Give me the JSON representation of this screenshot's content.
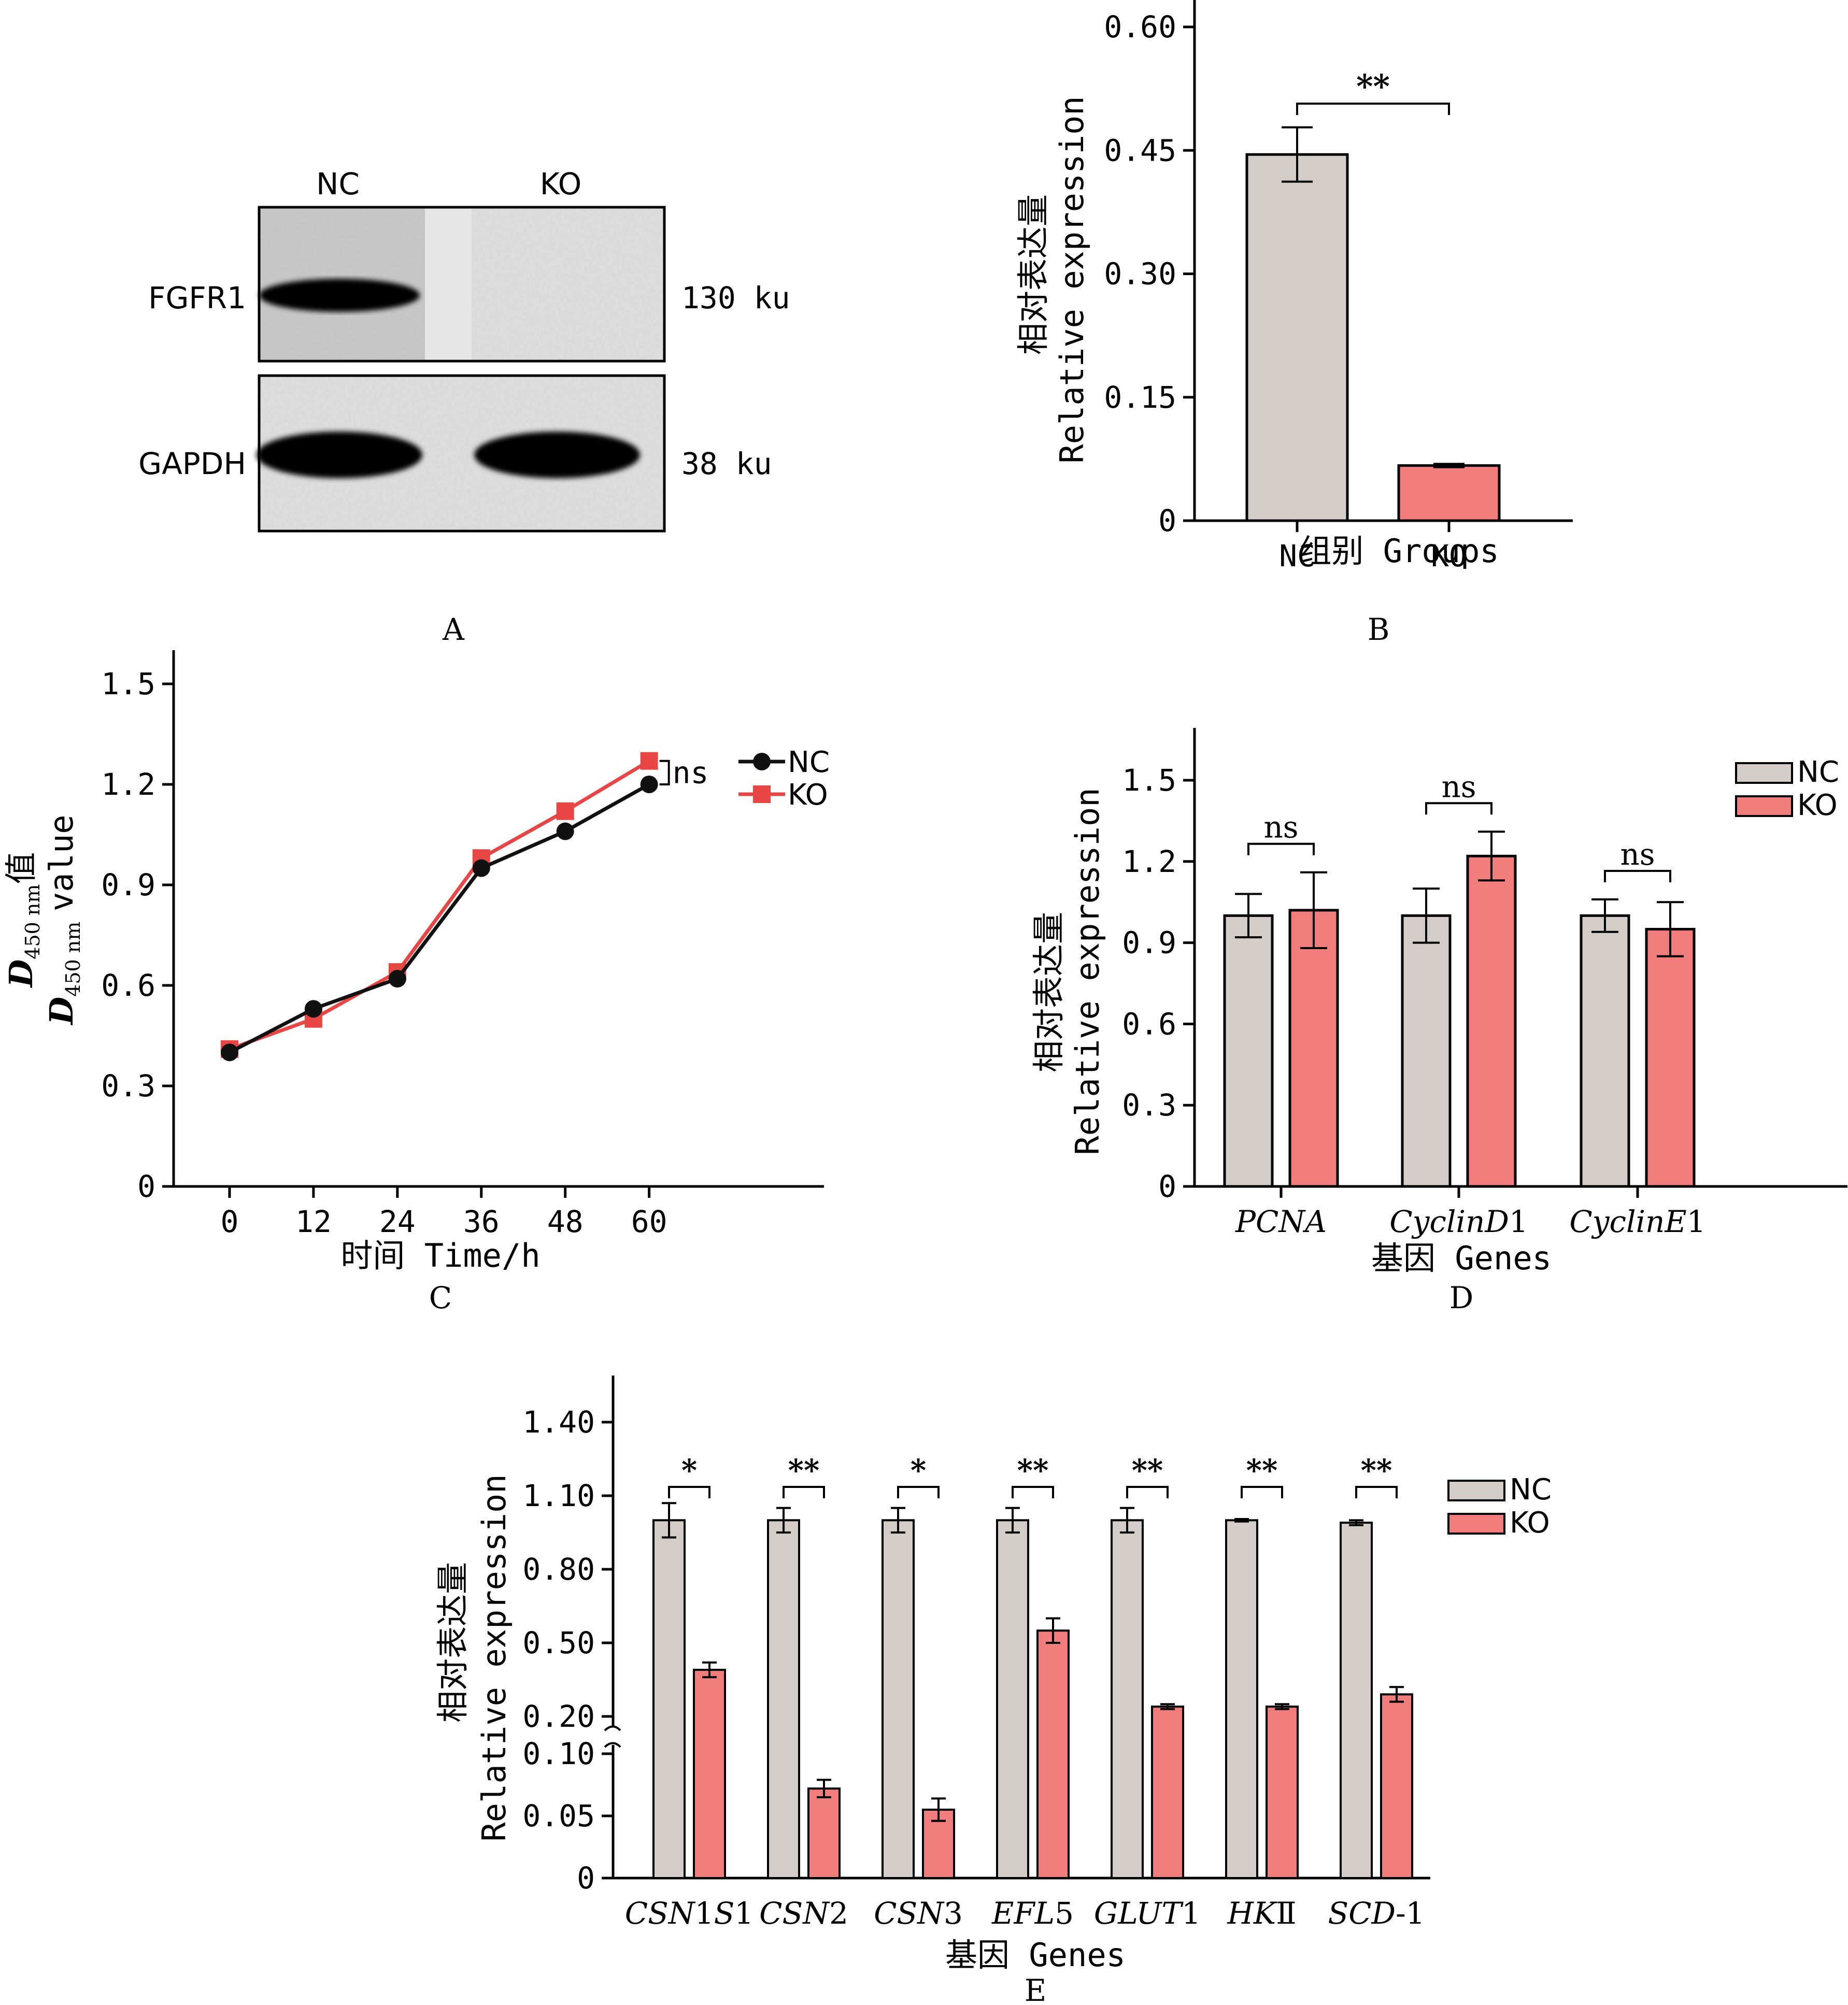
{
  "colors": {
    "nc_bar": "#d4ccc9",
    "ko_bar": "#f07c7c",
    "nc_line": "#111111",
    "ko_line": "#e84545",
    "blot_bg": "#d9d9d9"
  },
  "panels": {
    "A": {
      "label": "A",
      "lane_labels": [
        "NC",
        "KO"
      ],
      "bands": [
        {
          "name": "FGFR1",
          "size": "130 ku"
        },
        {
          "name": "GAPDH",
          "size": "38 ku"
        }
      ]
    },
    "B": {
      "label": "B"
    },
    "C": {
      "label": "C"
    },
    "D": {
      "label": "D"
    },
    "E": {
      "label": "E"
    }
  },
  "chart_data": [
    {
      "id": "B",
      "type": "bar",
      "ylabel_cn": "相对表达量",
      "ylabel_en": "Relative expression",
      "xlabel_cn": "组别",
      "xlabel_en": "Groups",
      "categories": [
        "NC",
        "KO"
      ],
      "values": [
        0.445,
        0.067
      ],
      "errors": [
        0.033,
        0.002
      ],
      "ylim": [
        0,
        0.6
      ],
      "yticks": [
        0,
        0.15,
        0.3,
        0.45,
        0.6
      ],
      "ytick_labels": [
        "0",
        "0.15",
        "0.30",
        "0.45",
        "0.60"
      ],
      "significance": [
        {
          "from": 0,
          "to": 1,
          "label": "**"
        }
      ]
    },
    {
      "id": "C",
      "type": "line",
      "ylabel_italic": "D",
      "ylabel_sub": "450 nm",
      "ylabel_cn": "值",
      "ylabel_en": "value",
      "xlabel_cn": "时间",
      "xlabel_en": "Time/h",
      "x": [
        0,
        12,
        24,
        36,
        48,
        60
      ],
      "xtick_labels": [
        "0",
        "12",
        "24",
        "36",
        "48",
        "60"
      ],
      "xlim": [
        -8,
        85
      ],
      "ylim": [
        0,
        1.5
      ],
      "yticks": [
        0,
        0.3,
        0.6,
        0.9,
        1.2,
        1.5
      ],
      "ytick_labels": [
        "0",
        "0.3",
        "0.6",
        "0.9",
        "1.2",
        "1.5"
      ],
      "series": [
        {
          "name": "NC",
          "values": [
            0.4,
            0.53,
            0.62,
            0.95,
            1.06,
            1.2
          ],
          "marker": "circle"
        },
        {
          "name": "KO",
          "values": [
            0.41,
            0.5,
            0.64,
            0.98,
            1.12,
            1.27
          ],
          "marker": "square"
        }
      ],
      "significance": [
        {
          "label": "ns"
        }
      ],
      "legend": "right"
    },
    {
      "id": "D",
      "type": "bar",
      "ylabel_cn": "相对表达量",
      "ylabel_en": "Relative expression",
      "xlabel_cn": "基因",
      "xlabel_en": "Genes",
      "categories": [
        {
          "parts": [
            {
              "t": "PCNA",
              "i": true
            }
          ]
        },
        {
          "parts": [
            {
              "t": "CyclinD",
              "i": true
            },
            {
              "t": "1",
              "i": false
            }
          ]
        },
        {
          "parts": [
            {
              "t": "CyclinE",
              "i": true
            },
            {
              "t": "1",
              "i": false
            }
          ]
        }
      ],
      "ylim": [
        0,
        1.65
      ],
      "yticks": [
        0,
        0.3,
        0.6,
        0.9,
        1.2,
        1.5
      ],
      "ytick_labels": [
        "0",
        "0.3",
        "0.6",
        "0.9",
        "1.2",
        "1.5"
      ],
      "series": [
        {
          "name": "NC",
          "values": [
            1.0,
            1.0,
            1.0
          ],
          "errors": [
            0.08,
            0.1,
            0.06
          ]
        },
        {
          "name": "KO",
          "values": [
            1.02,
            1.22,
            0.95
          ],
          "errors": [
            0.14,
            0.09,
            0.1
          ]
        }
      ],
      "significance": [
        "ns",
        "ns",
        "ns"
      ],
      "legend": "top-right"
    },
    {
      "id": "E",
      "type": "bar",
      "ylabel_cn": "相对表达量",
      "ylabel_en": "Relative expression",
      "xlabel_cn": "基因",
      "xlabel_en": "Genes",
      "axis_break": {
        "lower": [
          0,
          0.1
        ],
        "upper": [
          0.2,
          1.4
        ]
      },
      "yticks": [
        0,
        0.05,
        0.1,
        0.2,
        0.5,
        0.8,
        1.1,
        1.4
      ],
      "ytick_labels": [
        "0",
        "0.05",
        "0.10",
        "0.20",
        "0.50",
        "0.80",
        "1.10",
        "1.40"
      ],
      "categories": [
        {
          "parts": [
            {
              "t": "CSN",
              "i": true
            },
            {
              "t": "1",
              "i": false
            },
            {
              "t": "S",
              "i": true
            },
            {
              "t": "1",
              "i": false
            }
          ]
        },
        {
          "parts": [
            {
              "t": "CSN",
              "i": true
            },
            {
              "t": "2",
              "i": false
            }
          ]
        },
        {
          "parts": [
            {
              "t": "CSN",
              "i": true
            },
            {
              "t": "3",
              "i": false
            }
          ]
        },
        {
          "parts": [
            {
              "t": "EFL",
              "i": true
            },
            {
              "t": "5",
              "i": false
            }
          ]
        },
        {
          "parts": [
            {
              "t": "GLUT",
              "i": true
            },
            {
              "t": "1",
              "i": false
            }
          ]
        },
        {
          "parts": [
            {
              "t": "HK",
              "i": true
            },
            {
              "t": "Ⅱ",
              "i": false
            }
          ]
        },
        {
          "parts": [
            {
              "t": "SCD",
              "i": true
            },
            {
              "t": "-1",
              "i": false
            }
          ]
        }
      ],
      "series": [
        {
          "name": "NC",
          "values": [
            1.0,
            1.0,
            1.0,
            1.0,
            1.0,
            1.0,
            0.99
          ],
          "errors": [
            0.07,
            0.05,
            0.05,
            0.05,
            0.05,
            0.005,
            0.01
          ]
        },
        {
          "name": "KO",
          "values": [
            0.39,
            0.072,
            0.055,
            0.55,
            0.24,
            0.24,
            0.29
          ],
          "errors": [
            0.03,
            0.007,
            0.009,
            0.05,
            0.01,
            0.01,
            0.03
          ]
        }
      ],
      "significance": [
        "*",
        "**",
        "*",
        "**",
        "**",
        "**",
        "**"
      ],
      "legend": "top-right"
    }
  ]
}
